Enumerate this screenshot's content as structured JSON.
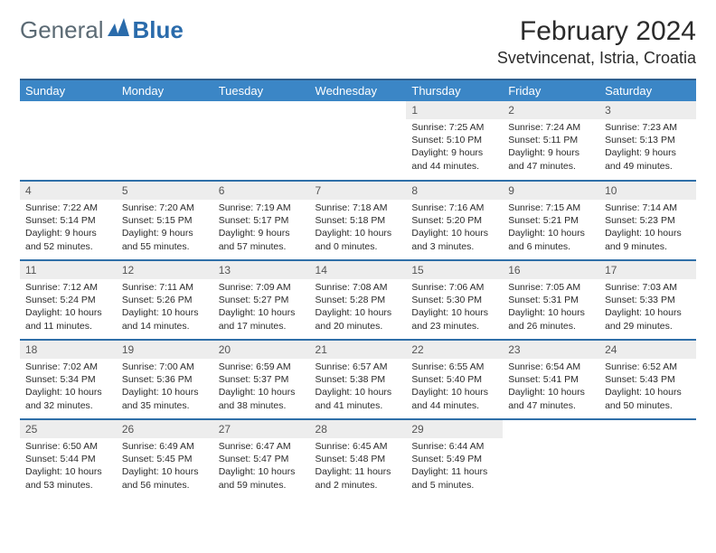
{
  "logo": {
    "general": "General",
    "blue": "Blue"
  },
  "title": "February 2024",
  "location": "Svetvincenat, Istria, Croatia",
  "colors": {
    "header_bg": "#3b86c6",
    "header_border": "#2f5f8f",
    "row_border": "#2f6fa8",
    "daynum_bg": "#ededed",
    "logo_general": "#5b6a74",
    "logo_blue": "#2a6bab"
  },
  "weekdays": [
    "Sunday",
    "Monday",
    "Tuesday",
    "Wednesday",
    "Thursday",
    "Friday",
    "Saturday"
  ],
  "grid": [
    [
      null,
      null,
      null,
      null,
      {
        "n": "1",
        "sunrise": "7:25 AM",
        "sunset": "5:10 PM",
        "dl1": "Daylight: 9 hours",
        "dl2": "and 44 minutes."
      },
      {
        "n": "2",
        "sunrise": "7:24 AM",
        "sunset": "5:11 PM",
        "dl1": "Daylight: 9 hours",
        "dl2": "and 47 minutes."
      },
      {
        "n": "3",
        "sunrise": "7:23 AM",
        "sunset": "5:13 PM",
        "dl1": "Daylight: 9 hours",
        "dl2": "and 49 minutes."
      }
    ],
    [
      {
        "n": "4",
        "sunrise": "7:22 AM",
        "sunset": "5:14 PM",
        "dl1": "Daylight: 9 hours",
        "dl2": "and 52 minutes."
      },
      {
        "n": "5",
        "sunrise": "7:20 AM",
        "sunset": "5:15 PM",
        "dl1": "Daylight: 9 hours",
        "dl2": "and 55 minutes."
      },
      {
        "n": "6",
        "sunrise": "7:19 AM",
        "sunset": "5:17 PM",
        "dl1": "Daylight: 9 hours",
        "dl2": "and 57 minutes."
      },
      {
        "n": "7",
        "sunrise": "7:18 AM",
        "sunset": "5:18 PM",
        "dl1": "Daylight: 10 hours",
        "dl2": "and 0 minutes."
      },
      {
        "n": "8",
        "sunrise": "7:16 AM",
        "sunset": "5:20 PM",
        "dl1": "Daylight: 10 hours",
        "dl2": "and 3 minutes."
      },
      {
        "n": "9",
        "sunrise": "7:15 AM",
        "sunset": "5:21 PM",
        "dl1": "Daylight: 10 hours",
        "dl2": "and 6 minutes."
      },
      {
        "n": "10",
        "sunrise": "7:14 AM",
        "sunset": "5:23 PM",
        "dl1": "Daylight: 10 hours",
        "dl2": "and 9 minutes."
      }
    ],
    [
      {
        "n": "11",
        "sunrise": "7:12 AM",
        "sunset": "5:24 PM",
        "dl1": "Daylight: 10 hours",
        "dl2": "and 11 minutes."
      },
      {
        "n": "12",
        "sunrise": "7:11 AM",
        "sunset": "5:26 PM",
        "dl1": "Daylight: 10 hours",
        "dl2": "and 14 minutes."
      },
      {
        "n": "13",
        "sunrise": "7:09 AM",
        "sunset": "5:27 PM",
        "dl1": "Daylight: 10 hours",
        "dl2": "and 17 minutes."
      },
      {
        "n": "14",
        "sunrise": "7:08 AM",
        "sunset": "5:28 PM",
        "dl1": "Daylight: 10 hours",
        "dl2": "and 20 minutes."
      },
      {
        "n": "15",
        "sunrise": "7:06 AM",
        "sunset": "5:30 PM",
        "dl1": "Daylight: 10 hours",
        "dl2": "and 23 minutes."
      },
      {
        "n": "16",
        "sunrise": "7:05 AM",
        "sunset": "5:31 PM",
        "dl1": "Daylight: 10 hours",
        "dl2": "and 26 minutes."
      },
      {
        "n": "17",
        "sunrise": "7:03 AM",
        "sunset": "5:33 PM",
        "dl1": "Daylight: 10 hours",
        "dl2": "and 29 minutes."
      }
    ],
    [
      {
        "n": "18",
        "sunrise": "7:02 AM",
        "sunset": "5:34 PM",
        "dl1": "Daylight: 10 hours",
        "dl2": "and 32 minutes."
      },
      {
        "n": "19",
        "sunrise": "7:00 AM",
        "sunset": "5:36 PM",
        "dl1": "Daylight: 10 hours",
        "dl2": "and 35 minutes."
      },
      {
        "n": "20",
        "sunrise": "6:59 AM",
        "sunset": "5:37 PM",
        "dl1": "Daylight: 10 hours",
        "dl2": "and 38 minutes."
      },
      {
        "n": "21",
        "sunrise": "6:57 AM",
        "sunset": "5:38 PM",
        "dl1": "Daylight: 10 hours",
        "dl2": "and 41 minutes."
      },
      {
        "n": "22",
        "sunrise": "6:55 AM",
        "sunset": "5:40 PM",
        "dl1": "Daylight: 10 hours",
        "dl2": "and 44 minutes."
      },
      {
        "n": "23",
        "sunrise": "6:54 AM",
        "sunset": "5:41 PM",
        "dl1": "Daylight: 10 hours",
        "dl2": "and 47 minutes."
      },
      {
        "n": "24",
        "sunrise": "6:52 AM",
        "sunset": "5:43 PM",
        "dl1": "Daylight: 10 hours",
        "dl2": "and 50 minutes."
      }
    ],
    [
      {
        "n": "25",
        "sunrise": "6:50 AM",
        "sunset": "5:44 PM",
        "dl1": "Daylight: 10 hours",
        "dl2": "and 53 minutes."
      },
      {
        "n": "26",
        "sunrise": "6:49 AM",
        "sunset": "5:45 PM",
        "dl1": "Daylight: 10 hours",
        "dl2": "and 56 minutes."
      },
      {
        "n": "27",
        "sunrise": "6:47 AM",
        "sunset": "5:47 PM",
        "dl1": "Daylight: 10 hours",
        "dl2": "and 59 minutes."
      },
      {
        "n": "28",
        "sunrise": "6:45 AM",
        "sunset": "5:48 PM",
        "dl1": "Daylight: 11 hours",
        "dl2": "and 2 minutes."
      },
      {
        "n": "29",
        "sunrise": "6:44 AM",
        "sunset": "5:49 PM",
        "dl1": "Daylight: 11 hours",
        "dl2": "and 5 minutes."
      },
      null,
      null
    ]
  ]
}
